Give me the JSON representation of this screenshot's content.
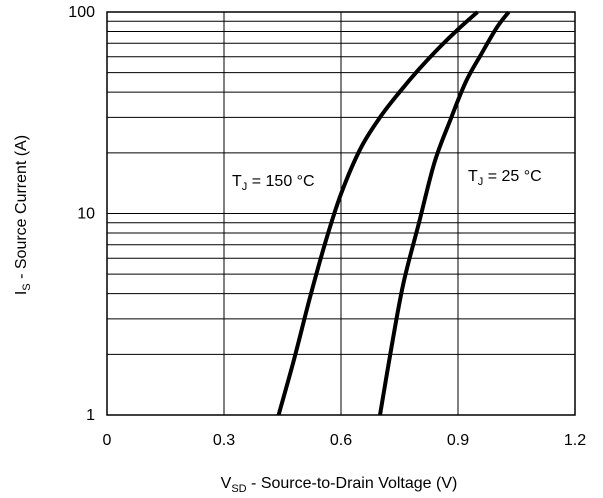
{
  "chart_data": {
    "type": "line",
    "xlabel": {
      "main": "V",
      "sub": "SD",
      "rest": " - Source-to-Drain Voltage (V)"
    },
    "ylabel": {
      "main": "I",
      "sub": "S",
      "rest": " - Source Current (A)"
    },
    "xlim": [
      0,
      1.2
    ],
    "ylim": [
      1,
      100
    ],
    "yscale": "log",
    "grid": true,
    "x_ticks": [
      "0",
      "0.3",
      "0.6",
      "0.9",
      "1.2"
    ],
    "y_ticks": [
      "1",
      "10",
      "100"
    ],
    "series": [
      {
        "label": {
          "main": "T",
          "sub": "J",
          "rest": " = 150 °C"
        },
        "color": "#000000",
        "points": [
          [
            0.44,
            1
          ],
          [
            0.48,
            1.9
          ],
          [
            0.52,
            3.8
          ],
          [
            0.56,
            7.2
          ],
          [
            0.6,
            12.5
          ],
          [
            0.65,
            21
          ],
          [
            0.7,
            30
          ],
          [
            0.75,
            40
          ],
          [
            0.8,
            52
          ],
          [
            0.85,
            66
          ],
          [
            0.9,
            82
          ],
          [
            0.95,
            100
          ]
        ]
      },
      {
        "label": {
          "main": "T",
          "sub": "J",
          "rest": " = 25 °C"
        },
        "color": "#000000",
        "points": [
          [
            0.7,
            1
          ],
          [
            0.73,
            2.2
          ],
          [
            0.76,
            4.5
          ],
          [
            0.8,
            9
          ],
          [
            0.84,
            18
          ],
          [
            0.88,
            29
          ],
          [
            0.92,
            45
          ],
          [
            0.96,
            62
          ],
          [
            1.0,
            84
          ],
          [
            1.03,
            100
          ]
        ]
      }
    ]
  }
}
